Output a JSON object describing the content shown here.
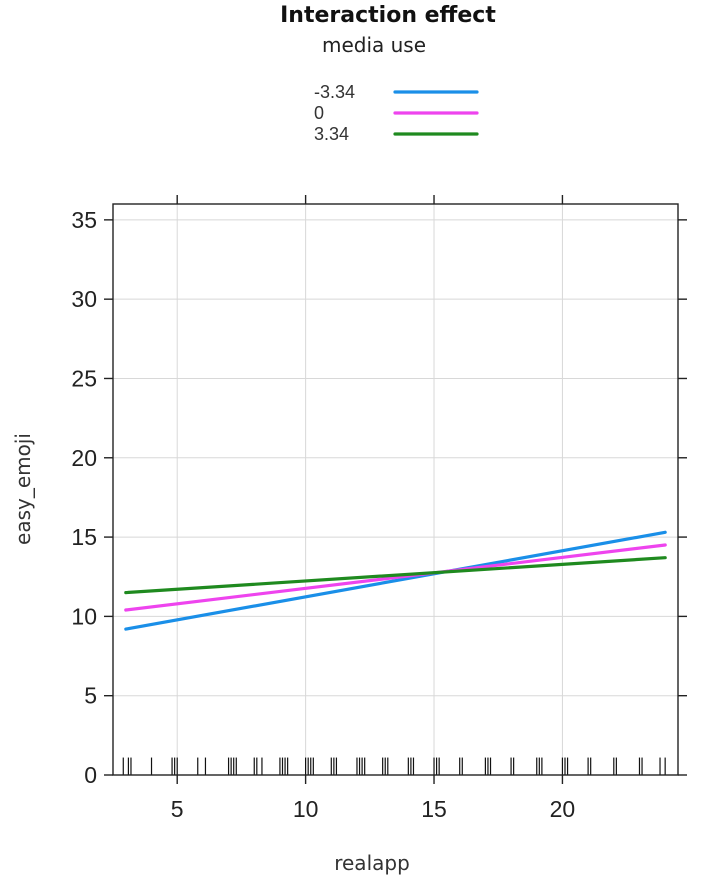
{
  "chart_data": {
    "type": "line",
    "title": "Interaction effect",
    "legend_title": "media use",
    "legend_position": "top-center",
    "xlabel": "realapp",
    "ylabel": "easy_emoji",
    "xlim": [
      2.5,
      24.5
    ],
    "ylim": [
      0,
      36
    ],
    "xticks": [
      5,
      10,
      15,
      20
    ],
    "yticks": [
      0,
      5,
      10,
      15,
      20,
      25,
      30,
      35
    ],
    "grid": true,
    "series": [
      {
        "name": "-3.34",
        "color": "#1a8fe8",
        "x": [
          3,
          24
        ],
        "y": [
          9.2,
          15.3
        ]
      },
      {
        "name": "0",
        "color": "#ee44ee",
        "x": [
          3,
          24
        ],
        "y": [
          10.4,
          14.5
        ]
      },
      {
        "name": "3.34",
        "color": "#1f8a1f",
        "x": [
          3,
          24
        ],
        "y": [
          11.5,
          13.7
        ]
      }
    ],
    "rug": {
      "y_range": [
        0,
        1.1
      ],
      "x": [
        2.9,
        3.1,
        3.2,
        4.0,
        4.8,
        4.9,
        5.0,
        5.8,
        6.1,
        7.0,
        7.1,
        7.2,
        7.3,
        8.0,
        8.1,
        8.3,
        9.0,
        9.1,
        9.2,
        9.3,
        10.0,
        10.1,
        10.2,
        10.3,
        11.0,
        11.1,
        11.2,
        12.0,
        12.1,
        12.2,
        12.3,
        13.0,
        13.1,
        13.2,
        14.0,
        14.1,
        14.2,
        15.0,
        15.1,
        15.2,
        16.0,
        16.1,
        17.0,
        17.1,
        17.2,
        18.0,
        18.1,
        19.0,
        19.1,
        19.2,
        20.0,
        20.1,
        20.2,
        21.0,
        21.1,
        22.0,
        22.1,
        23.0,
        23.1,
        23.8,
        24.0
      ]
    }
  }
}
